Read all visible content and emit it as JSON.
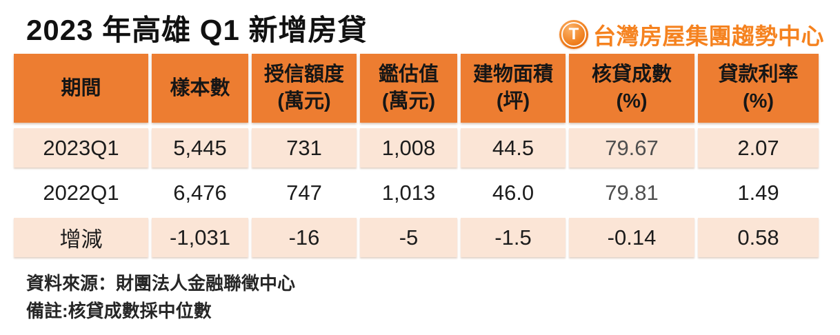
{
  "page": {
    "title": "2023 年高雄 Q1 新增房貸"
  },
  "logo": {
    "icon_letter": "T",
    "text": "台灣房屋集團趨勢中心"
  },
  "table": {
    "columns": [
      {
        "label": "期間",
        "unit": ""
      },
      {
        "label": "樣本數",
        "unit": ""
      },
      {
        "label": "授信額度",
        "unit": "(萬元)"
      },
      {
        "label": "鑑估值",
        "unit": "(萬元)"
      },
      {
        "label": "建物面積",
        "unit": "(坪)"
      },
      {
        "label": "核貸成數",
        "unit": "(%)"
      },
      {
        "label": "貸款利率",
        "unit": "(%)"
      }
    ],
    "rows": [
      {
        "period": "2023Q1",
        "values": [
          "5,445",
          "731",
          "1,008",
          "44.5",
          "79.67",
          "2.07"
        ]
      },
      {
        "period": "2022Q1",
        "values": [
          "6,476",
          "747",
          "1,013",
          "46.0",
          "79.81",
          "1.49"
        ]
      },
      {
        "period": "增減",
        "values": [
          "-1,031",
          "-16",
          "-5",
          "-1.5",
          "-0.14",
          "0.58"
        ]
      }
    ]
  },
  "notes": {
    "source": "資料來源：財團法人金融聯徵中心",
    "remark": "備註:核貸成數採中位數"
  },
  "colors": {
    "header_bg": "#ED7D31",
    "row_tint_bg": "#FBE5D6",
    "logo_orange": "#F5821F",
    "text_dark": "#1C1C1C",
    "text_gray": "#4F4F4F"
  },
  "chart_data": {
    "type": "table",
    "title": "2023 年高雄 Q1 新增房貸",
    "columns": [
      "期間",
      "樣本數",
      "授信額度(萬元)",
      "鑑估值(萬元)",
      "建物面積(坪)",
      "核貸成數(%)",
      "貸款利率(%)"
    ],
    "rows": [
      [
        "2023Q1",
        5445,
        731,
        1008,
        44.5,
        79.67,
        2.07
      ],
      [
        "2022Q1",
        6476,
        747,
        1013,
        46.0,
        79.81,
        1.49
      ],
      [
        "增減",
        -1031,
        -16,
        -5,
        -1.5,
        -0.14,
        0.58
      ]
    ],
    "source": "資料來源：財團法人金融聯徵中心",
    "note": "備註:核貸成數採中位數"
  }
}
